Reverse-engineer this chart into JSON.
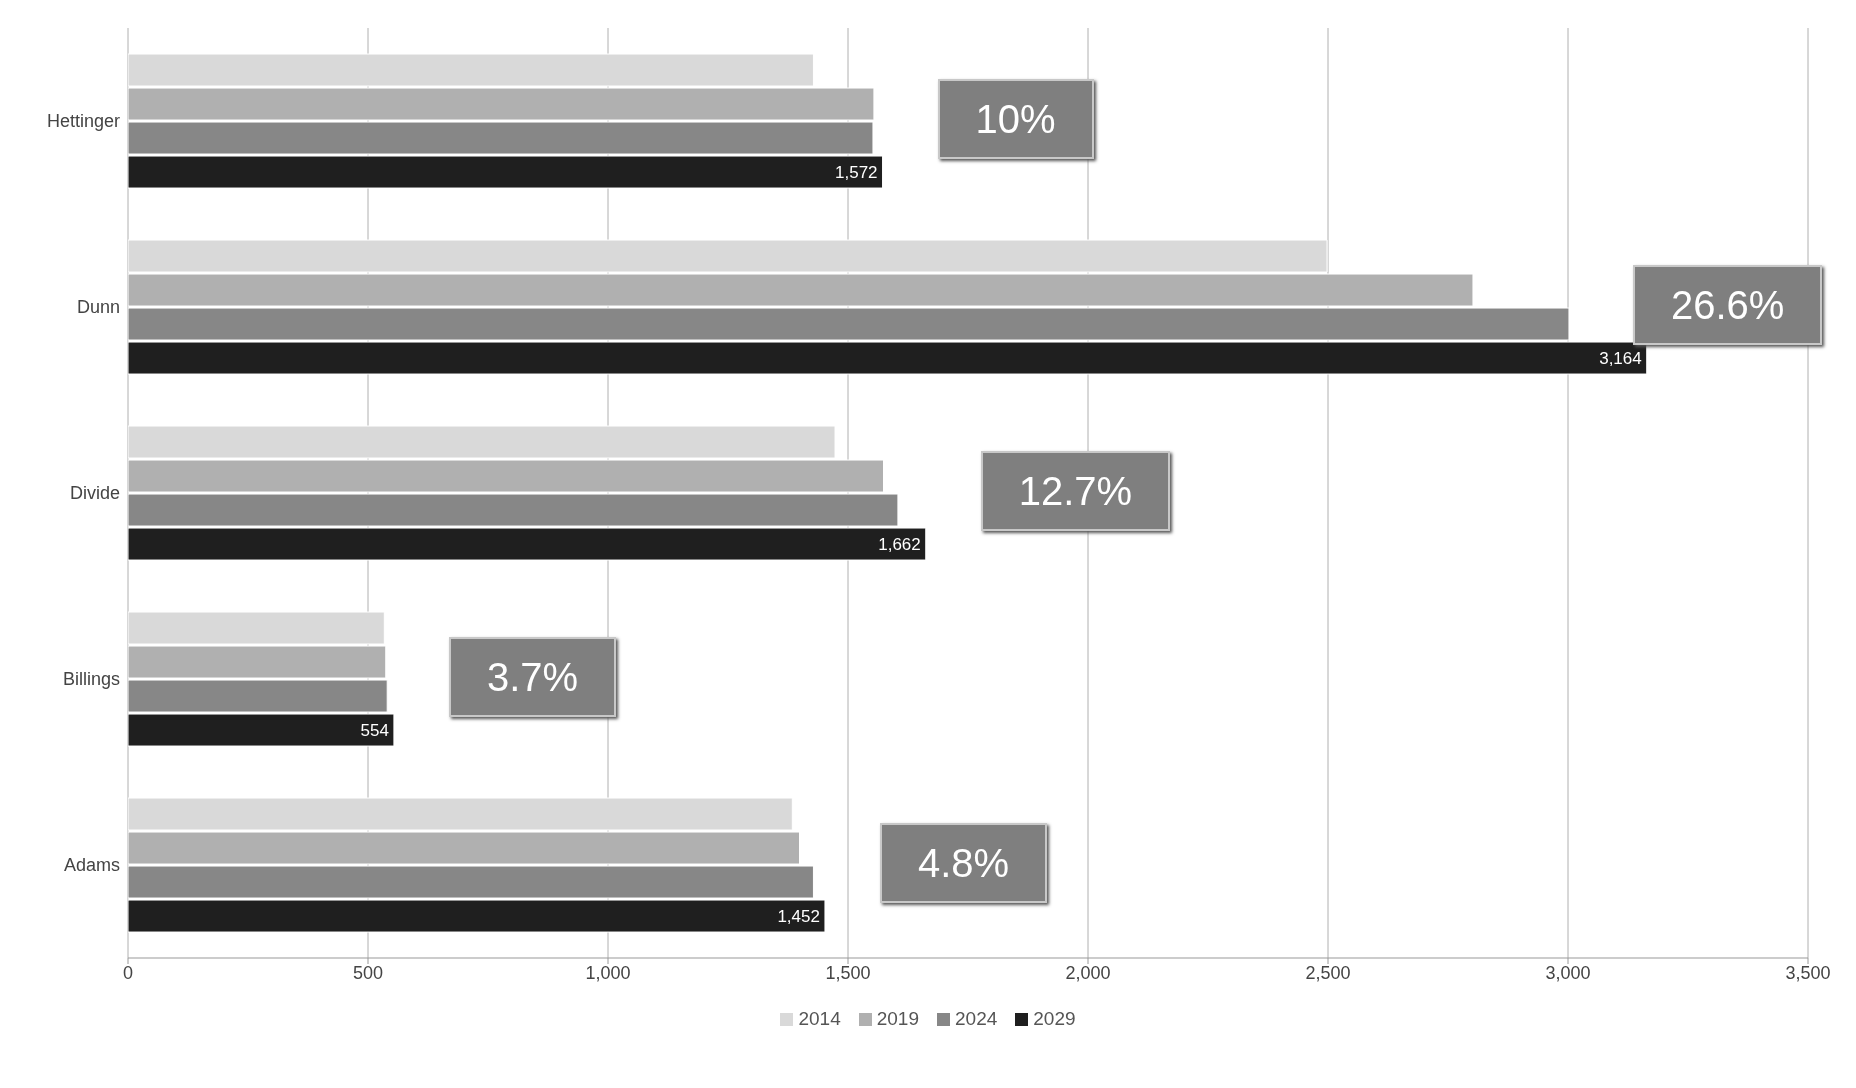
{
  "chart_data": {
    "type": "bar",
    "orientation": "horizontal",
    "categories": [
      "Hettinger",
      "Dunn",
      "Divide",
      "Billings",
      "Adams"
    ],
    "series": [
      {
        "name": "2014",
        "color": "#d9d9d9",
        "values": [
          1428,
          2498,
          1473,
          534,
          1384
        ]
      },
      {
        "name": "2019",
        "color": "#b0b0b0",
        "values": [
          1554,
          2802,
          1574,
          537,
          1399
        ]
      },
      {
        "name": "2024",
        "color": "#878787",
        "values": [
          1552,
          3002,
          1604,
          540,
          1428
        ]
      },
      {
        "name": "2029",
        "color": "#1f1f1f",
        "values": [
          1572,
          3164,
          1662,
          554,
          1452
        ],
        "value_labels": [
          "1,572",
          "3,164",
          "1,662",
          "554",
          "1,452"
        ]
      }
    ],
    "xlim": [
      0,
      3500
    ],
    "xticks": [
      0,
      500,
      {
        "value": 1000,
        "label": "1,000"
      },
      {
        "value": 1500,
        "label": "1,500"
      },
      {
        "value": 2000,
        "label": "2,000"
      },
      {
        "value": 2500,
        "label": "2,500"
      },
      {
        "value": 3000,
        "label": "3,000"
      },
      {
        "value": 3500,
        "label": "3,500"
      }
    ],
    "grid": "x",
    "legend": "bottom",
    "annotations": [
      "10%",
      "26.6%",
      "12.7%",
      "3.7%",
      "4.8%"
    ]
  }
}
